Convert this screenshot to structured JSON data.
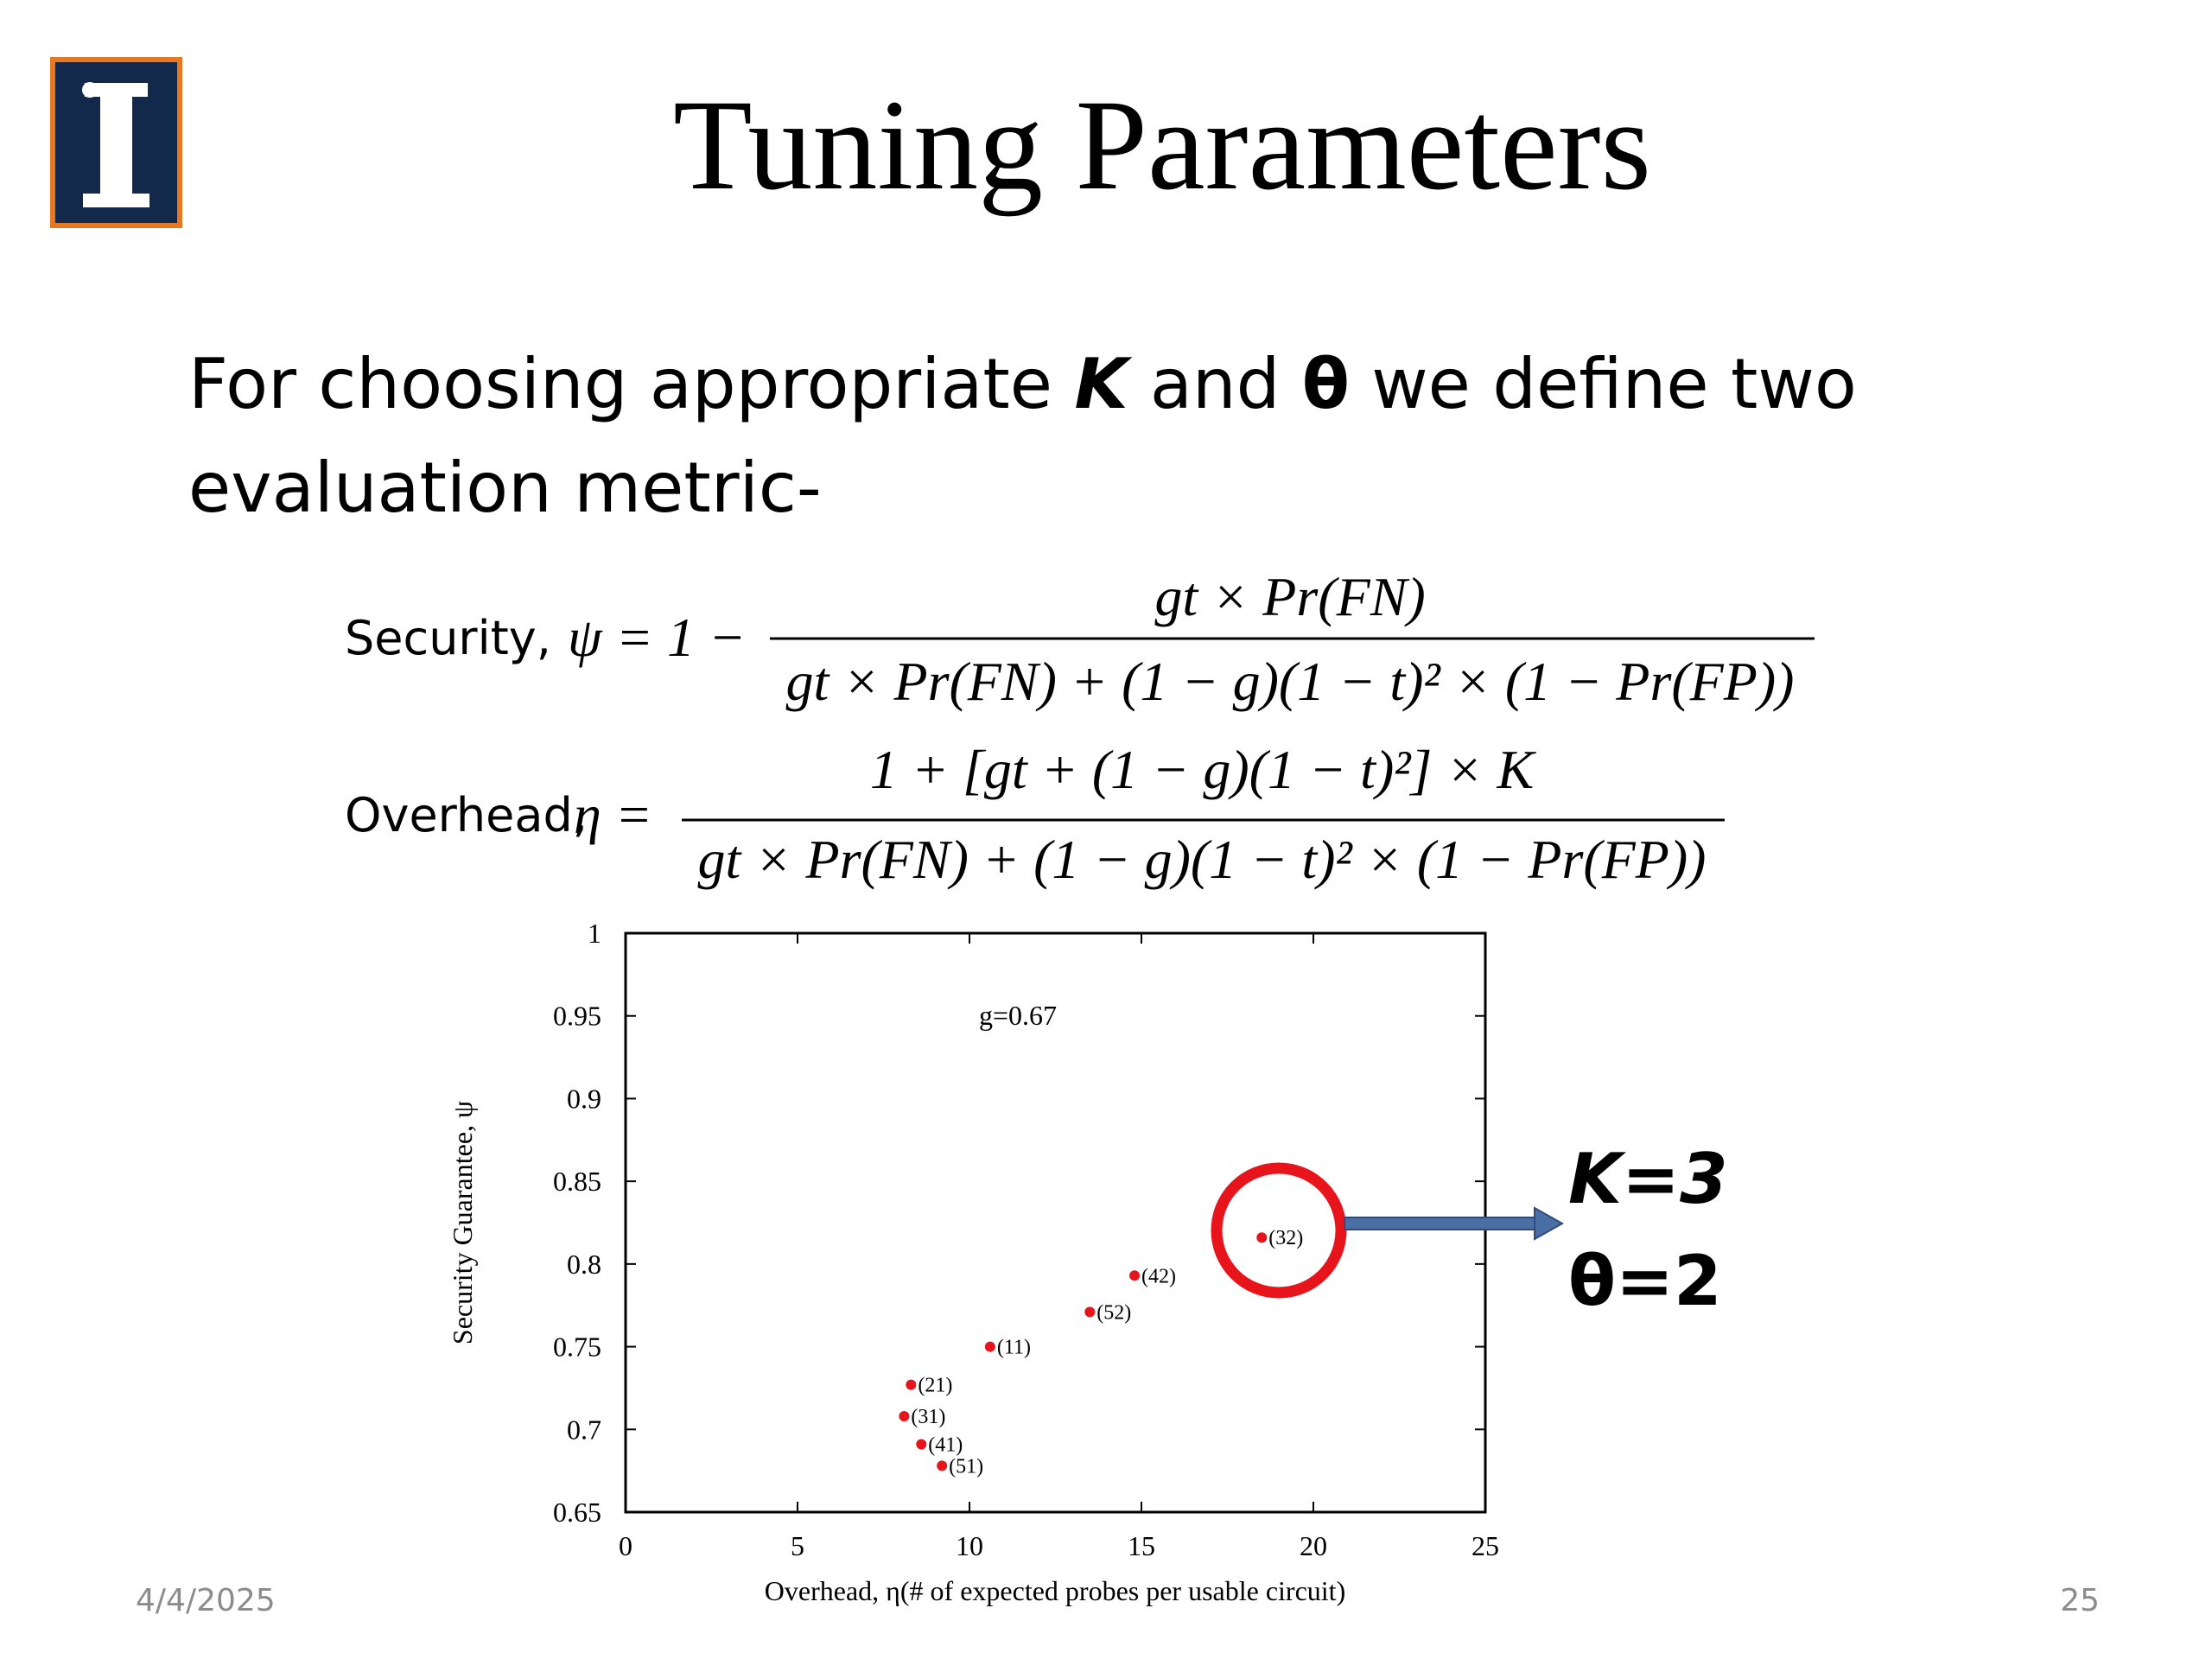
{
  "header": {
    "title": "Tuning Parameters"
  },
  "body": {
    "line1": [
      "For choosing appropriate ",
      "K",
      " and ",
      "θ",
      " we define two"
    ],
    "line2": "evaluation metric-"
  },
  "formulas": {
    "security": {
      "label": "Security,",
      "lhs": "ψ = 1 −",
      "numerator": "gt × Pr(FN)",
      "denominator": "gt × Pr(FN) + (1 − g)(1 − t)² × (1 − Pr(FP))"
    },
    "overhead": {
      "label": "Overhead,",
      "lhs": "η =",
      "numerator": "1 + [gt + (1 − g)(1 − t)²] × K",
      "denominator": "gt × Pr(FN) + (1 − g)(1 − t)² × (1 − Pr(FP))"
    }
  },
  "chart_data": {
    "type": "scatter",
    "x_label": "Overhead, η(# of expected probes per usable circuit)",
    "y_label": "Security Guarantee, ψ",
    "annotation": "g=0.67",
    "color": "#e8141c",
    "x": [
      10.6,
      8.3,
      8.1,
      8.6,
      9.2,
      13.5,
      14.8,
      18.5
    ],
    "values": [
      0.75,
      0.727,
      0.708,
      0.691,
      0.678,
      0.771,
      0.793,
      0.816
    ],
    "point_labels": [
      "(11)",
      "(21)",
      "(31)",
      "(41)",
      "(51)",
      "(52)",
      "(42)",
      "(32)"
    ],
    "xlim": [
      0,
      25
    ],
    "xticks": [
      0,
      5,
      10,
      15,
      20,
      25
    ],
    "ylim": [
      0.65,
      1
    ],
    "yticks": [
      0.65,
      0.7,
      0.75,
      0.8,
      0.85,
      0.9,
      0.95,
      1
    ],
    "grid": false
  },
  "callout": {
    "k": "K=3",
    "theta": "θ=2"
  },
  "footer": {
    "date": "4/4/2025",
    "page": "25"
  }
}
